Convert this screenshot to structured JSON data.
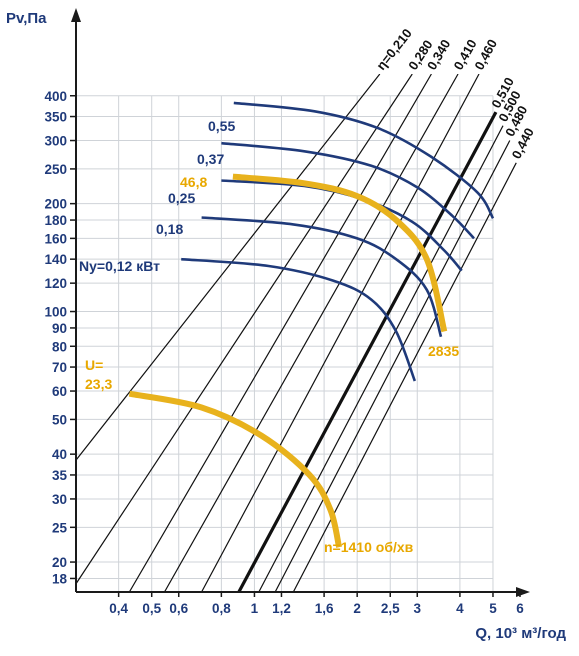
{
  "chart_data": {
    "type": "line",
    "title": "",
    "xlabel": "Q, 10³ м³/год",
    "ylabel": "Pv,Па",
    "x_scale": "log",
    "y_scale": "log",
    "xlim": [
      0.3,
      6
    ],
    "ylim": [
      16.5,
      460
    ],
    "grid": true,
    "x_ticks": [
      {
        "v": 0.4,
        "label": "0,4"
      },
      {
        "v": 0.5,
        "label": "0,5"
      },
      {
        "v": 0.6,
        "label": "0,6"
      },
      {
        "v": 0.8,
        "label": "0,8"
      },
      {
        "v": 1,
        "label": "1"
      },
      {
        "v": 1.2,
        "label": "1,2"
      },
      {
        "v": 1.6,
        "label": "1,6"
      },
      {
        "v": 2,
        "label": "2"
      },
      {
        "v": 2.5,
        "label": "2,5"
      },
      {
        "v": 3,
        "label": "3"
      },
      {
        "v": 4,
        "label": "4"
      },
      {
        "v": 5,
        "label": "5"
      },
      {
        "v": 6,
        "label": "6"
      }
    ],
    "y_ticks": [
      {
        "v": 18,
        "label": "18"
      },
      {
        "v": 20,
        "label": "20"
      },
      {
        "v": 25,
        "label": "25"
      },
      {
        "v": 30,
        "label": "30"
      },
      {
        "v": 35,
        "label": "35"
      },
      {
        "v": 40,
        "label": "40"
      },
      {
        "v": 50,
        "label": "50"
      },
      {
        "v": 60,
        "label": "60"
      },
      {
        "v": 70,
        "label": "70"
      },
      {
        "v": 80,
        "label": "80"
      },
      {
        "v": 90,
        "label": "90"
      },
      {
        "v": 100,
        "label": "100"
      },
      {
        "v": 120,
        "label": "120"
      },
      {
        "v": 140,
        "label": "140"
      },
      {
        "v": 160,
        "label": "160"
      },
      {
        "v": 180,
        "label": "180"
      },
      {
        "v": 200,
        "label": "200"
      },
      {
        "v": 250,
        "label": "250"
      },
      {
        "v": 300,
        "label": "300"
      },
      {
        "v": 350,
        "label": "350"
      },
      {
        "v": 400,
        "label": "400"
      }
    ],
    "efficiency_lines": [
      {
        "label": "η=0,210",
        "p1": [
          0.3,
          38.5
        ],
        "p2": [
          2.33,
          460
        ]
      },
      {
        "label": "0,280",
        "p1": [
          0.3,
          17.4
        ],
        "p2": [
          2.9,
          460
        ]
      },
      {
        "label": "0,340",
        "p1": [
          0.43,
          16.5
        ],
        "p2": [
          3.3,
          460
        ]
      },
      {
        "label": "0,410",
        "p1": [
          0.545,
          16.5
        ],
        "p2": [
          3.95,
          460
        ]
      },
      {
        "label": "0,460",
        "p1": [
          0.7,
          16.5
        ],
        "p2": [
          4.55,
          460
        ]
      },
      {
        "label": "0,510",
        "p1": [
          0.9,
          16.5
        ],
        "p2": [
          5.1,
          360
        ],
        "bold": true
      },
      {
        "label": "0,500",
        "p1": [
          1.03,
          16.5
        ],
        "p2": [
          5.35,
          330
        ]
      },
      {
        "label": "0,480",
        "p1": [
          1.15,
          16.5
        ],
        "p2": [
          5.6,
          300
        ]
      },
      {
        "label": "0,440",
        "p1": [
          1.3,
          16.5
        ],
        "p2": [
          5.85,
          260
        ]
      }
    ],
    "series": [
      {
        "name": "0,55",
        "color": "#1f3a7a",
        "points": [
          [
            0.87,
            382
          ],
          [
            1.5,
            362
          ],
          [
            2.3,
            325
          ],
          [
            3.3,
            270
          ],
          [
            4.5,
            215
          ],
          [
            5.0,
            182
          ]
        ]
      },
      {
        "name": "0,37",
        "color": "#1f3a7a",
        "points": [
          [
            0.8,
            295
          ],
          [
            1.4,
            280
          ],
          [
            2.2,
            255
          ],
          [
            3.0,
            222
          ],
          [
            3.8,
            185
          ],
          [
            4.4,
            160
          ]
        ]
      },
      {
        "name": "0,25",
        "color": "#1f3a7a",
        "points": [
          [
            0.8,
            232
          ],
          [
            1.4,
            224
          ],
          [
            2.1,
            205
          ],
          [
            2.9,
            178
          ],
          [
            3.6,
            148
          ],
          [
            4.05,
            130
          ]
        ]
      },
      {
        "name": "0,18",
        "color": "#1f3a7a",
        "points": [
          [
            0.7,
            183
          ],
          [
            1.3,
            175
          ],
          [
            2.0,
            160
          ],
          [
            2.6,
            140
          ],
          [
            3.2,
            115
          ],
          [
            3.52,
            85
          ]
        ]
      },
      {
        "name": "Ny=0,12 кВт",
        "color": "#1f3a7a",
        "points": [
          [
            0.61,
            140
          ],
          [
            1.1,
            134
          ],
          [
            1.7,
            122
          ],
          [
            2.2,
            108
          ],
          [
            2.6,
            88
          ],
          [
            2.95,
            64
          ]
        ]
      },
      {
        "name": "n=2835",
        "color": "#e8b21d",
        "points": [
          [
            0.865,
            238
          ],
          [
            1.4,
            228
          ],
          [
            2.0,
            210
          ],
          [
            2.6,
            180
          ],
          [
            3.2,
            140
          ],
          [
            3.6,
            88
          ]
        ]
      },
      {
        "name": "n=1410 об/хв",
        "color": "#e8b21d",
        "points": [
          [
            0.43,
            59
          ],
          [
            0.7,
            54
          ],
          [
            1.05,
            45
          ],
          [
            1.45,
            35
          ],
          [
            1.67,
            28
          ],
          [
            1.77,
            22
          ]
        ]
      }
    ],
    "annotations": [
      {
        "text": "0,55",
        "color": "blue"
      },
      {
        "text": "0,37",
        "color": "blue"
      },
      {
        "text": "0,25",
        "color": "blue"
      },
      {
        "text": "0,18",
        "color": "blue"
      },
      {
        "text": "Ny=0,12 кВт",
        "color": "blue"
      },
      {
        "text": "46,8",
        "color": "gold"
      },
      {
        "text": "U=",
        "color": "gold"
      },
      {
        "text": "23,3",
        "color": "gold"
      },
      {
        "text": "2835",
        "color": "gold"
      },
      {
        "text": "n=1410 об/хв",
        "color": "gold"
      }
    ]
  }
}
